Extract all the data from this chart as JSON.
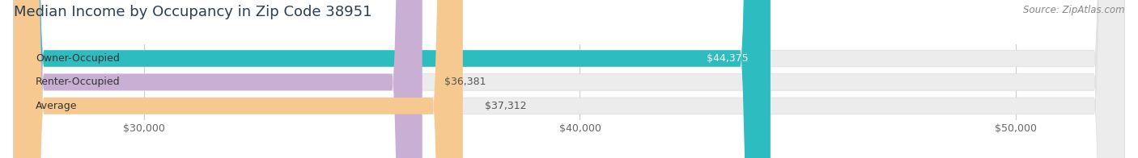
{
  "title": "Median Income by Occupancy in Zip Code 38951",
  "source": "Source: ZipAtlas.com",
  "categories": [
    "Owner-Occupied",
    "Renter-Occupied",
    "Average"
  ],
  "values": [
    44375,
    36381,
    37312
  ],
  "bar_colors": [
    "#2dbcbf",
    "#c9afd4",
    "#f5c990"
  ],
  "label_colors": [
    "#ffffff",
    "#555555",
    "#555555"
  ],
  "xlim_min": 27000,
  "xlim_max": 52500,
  "xticks": [
    30000,
    40000,
    50000
  ],
  "xtick_labels": [
    "$30,000",
    "$40,000",
    "$50,000"
  ],
  "background_color": "#ffffff",
  "bar_background_color": "#ececec",
  "title_fontsize": 13,
  "label_fontsize": 9,
  "value_fontsize": 9,
  "source_fontsize": 8.5
}
